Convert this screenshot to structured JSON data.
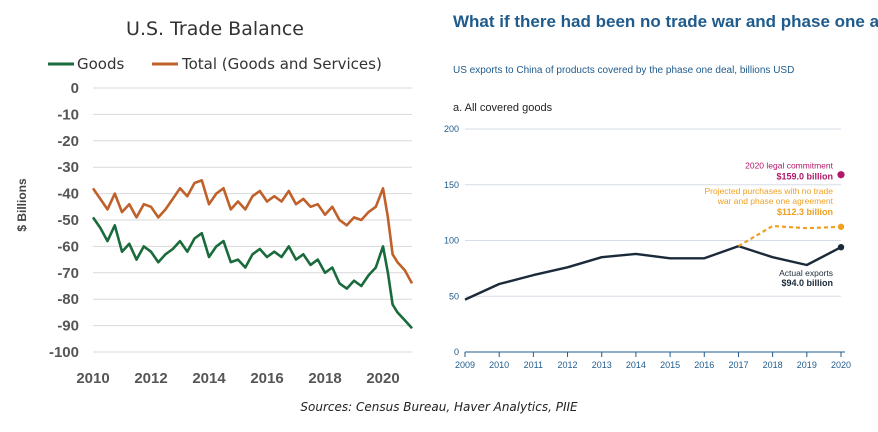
{
  "chart_data": [
    {
      "type": "line",
      "title": "U.S. Trade Balance",
      "ylabel": "$ Billions",
      "xlabel": "",
      "ylim": [
        -100,
        0
      ],
      "xlim": [
        2010,
        2021
      ],
      "x_ticks": [
        "2010",
        "2012",
        "2014",
        "2016",
        "2018",
        "2020"
      ],
      "y_ticks": [
        "0",
        "-10",
        "-20",
        "-30",
        "-40",
        "-50",
        "-60",
        "-70",
        "-80",
        "-90",
        "-100"
      ],
      "grid": "horizontal",
      "legend_position": "top",
      "colors": {
        "Goods": "#1a6b3c",
        "Total (Goods and Services)": "#c0602a"
      },
      "series": [
        {
          "name": "Goods",
          "x": [
            2010.0,
            2010.25,
            2010.5,
            2010.75,
            2011.0,
            2011.25,
            2011.5,
            2011.75,
            2012.0,
            2012.25,
            2012.5,
            2012.75,
            2013.0,
            2013.25,
            2013.5,
            2013.75,
            2014.0,
            2014.25,
            2014.5,
            2014.75,
            2015.0,
            2015.25,
            2015.5,
            2015.75,
            2016.0,
            2016.25,
            2016.5,
            2016.75,
            2017.0,
            2017.25,
            2017.5,
            2017.75,
            2018.0,
            2018.25,
            2018.5,
            2018.75,
            2019.0,
            2019.25,
            2019.5,
            2019.75,
            2020.0,
            2020.17,
            2020.33,
            2020.5,
            2020.75,
            2021.0
          ],
          "values": [
            -49,
            -53,
            -58,
            -52,
            -62,
            -59,
            -65,
            -60,
            -62,
            -66,
            -63,
            -61,
            -58,
            -62,
            -57,
            -55,
            -64,
            -60,
            -58,
            -66,
            -65,
            -68,
            -63,
            -61,
            -64,
            -62,
            -64,
            -60,
            -65,
            -63,
            -67,
            -65,
            -70,
            -68,
            -74,
            -76,
            -73,
            -75,
            -71,
            -68,
            -60,
            -70,
            -82,
            -85,
            -88,
            -91
          ]
        },
        {
          "name": "Total (Goods and Services)",
          "x": [
            2010.0,
            2010.25,
            2010.5,
            2010.75,
            2011.0,
            2011.25,
            2011.5,
            2011.75,
            2012.0,
            2012.25,
            2012.5,
            2012.75,
            2013.0,
            2013.25,
            2013.5,
            2013.75,
            2014.0,
            2014.25,
            2014.5,
            2014.75,
            2015.0,
            2015.25,
            2015.5,
            2015.75,
            2016.0,
            2016.25,
            2016.5,
            2016.75,
            2017.0,
            2017.25,
            2017.5,
            2017.75,
            2018.0,
            2018.25,
            2018.5,
            2018.75,
            2019.0,
            2019.25,
            2019.5,
            2019.75,
            2020.0,
            2020.17,
            2020.33,
            2020.5,
            2020.75,
            2021.0
          ],
          "values": [
            -38,
            -42,
            -46,
            -40,
            -47,
            -44,
            -49,
            -44,
            -45,
            -49,
            -46,
            -42,
            -38,
            -41,
            -36,
            -35,
            -44,
            -40,
            -38,
            -46,
            -43,
            -46,
            -41,
            -39,
            -43,
            -41,
            -43,
            -39,
            -44,
            -42,
            -45,
            -44,
            -48,
            -45,
            -50,
            -52,
            -49,
            -50,
            -47,
            -45,
            -38,
            -49,
            -63,
            -66,
            -69,
            -74
          ]
        }
      ]
    },
    {
      "type": "line",
      "title": "What if there had been no trade war and phase one agreement?",
      "subtitle": "US exports to China of products covered by the phase one deal, billions USD",
      "panel_label": "a. All covered goods",
      "ylim": [
        0,
        200
      ],
      "y_ticks": [
        "0",
        "50",
        "100",
        "150",
        "200"
      ],
      "categories": [
        "2009",
        "2010",
        "2011",
        "2012",
        "2013",
        "2014",
        "2015",
        "2016",
        "2017",
        "2018",
        "2019",
        "2020"
      ],
      "grid": "horizontal",
      "colors": {
        "actual": "#1b2a3a",
        "projected": "#f0a020",
        "commitment": "#b0186a"
      },
      "series": [
        {
          "id": "actual",
          "x": [
            2009,
            2010,
            2011,
            2012,
            2013,
            2014,
            2015,
            2016,
            2017,
            2018,
            2019,
            2020
          ],
          "values": [
            47,
            61,
            69,
            76,
            85,
            88,
            84,
            84,
            95,
            85,
            78,
            94
          ]
        },
        {
          "id": "projected",
          "x": [
            2017,
            2018,
            2019,
            2020
          ],
          "values": [
            95,
            113,
            111,
            112.3
          ]
        },
        {
          "id": "commitment",
          "x": [
            2020
          ],
          "values": [
            159.0
          ]
        }
      ],
      "annotations": [
        {
          "target": "commitment",
          "label": "2020 legal commitment",
          "value_label": "$159.0 billion"
        },
        {
          "target": "projected",
          "label_lines": [
            "Projected purchases with no trade",
            "war and phase one agreement"
          ],
          "value_label": "$112.3 billion"
        },
        {
          "target": "actual",
          "label": "Actual exports",
          "value_label": "$94.0 billion"
        }
      ]
    }
  ],
  "footer": {
    "sources": "Sources: Census Bureau, Haver Analytics, PIIE"
  }
}
